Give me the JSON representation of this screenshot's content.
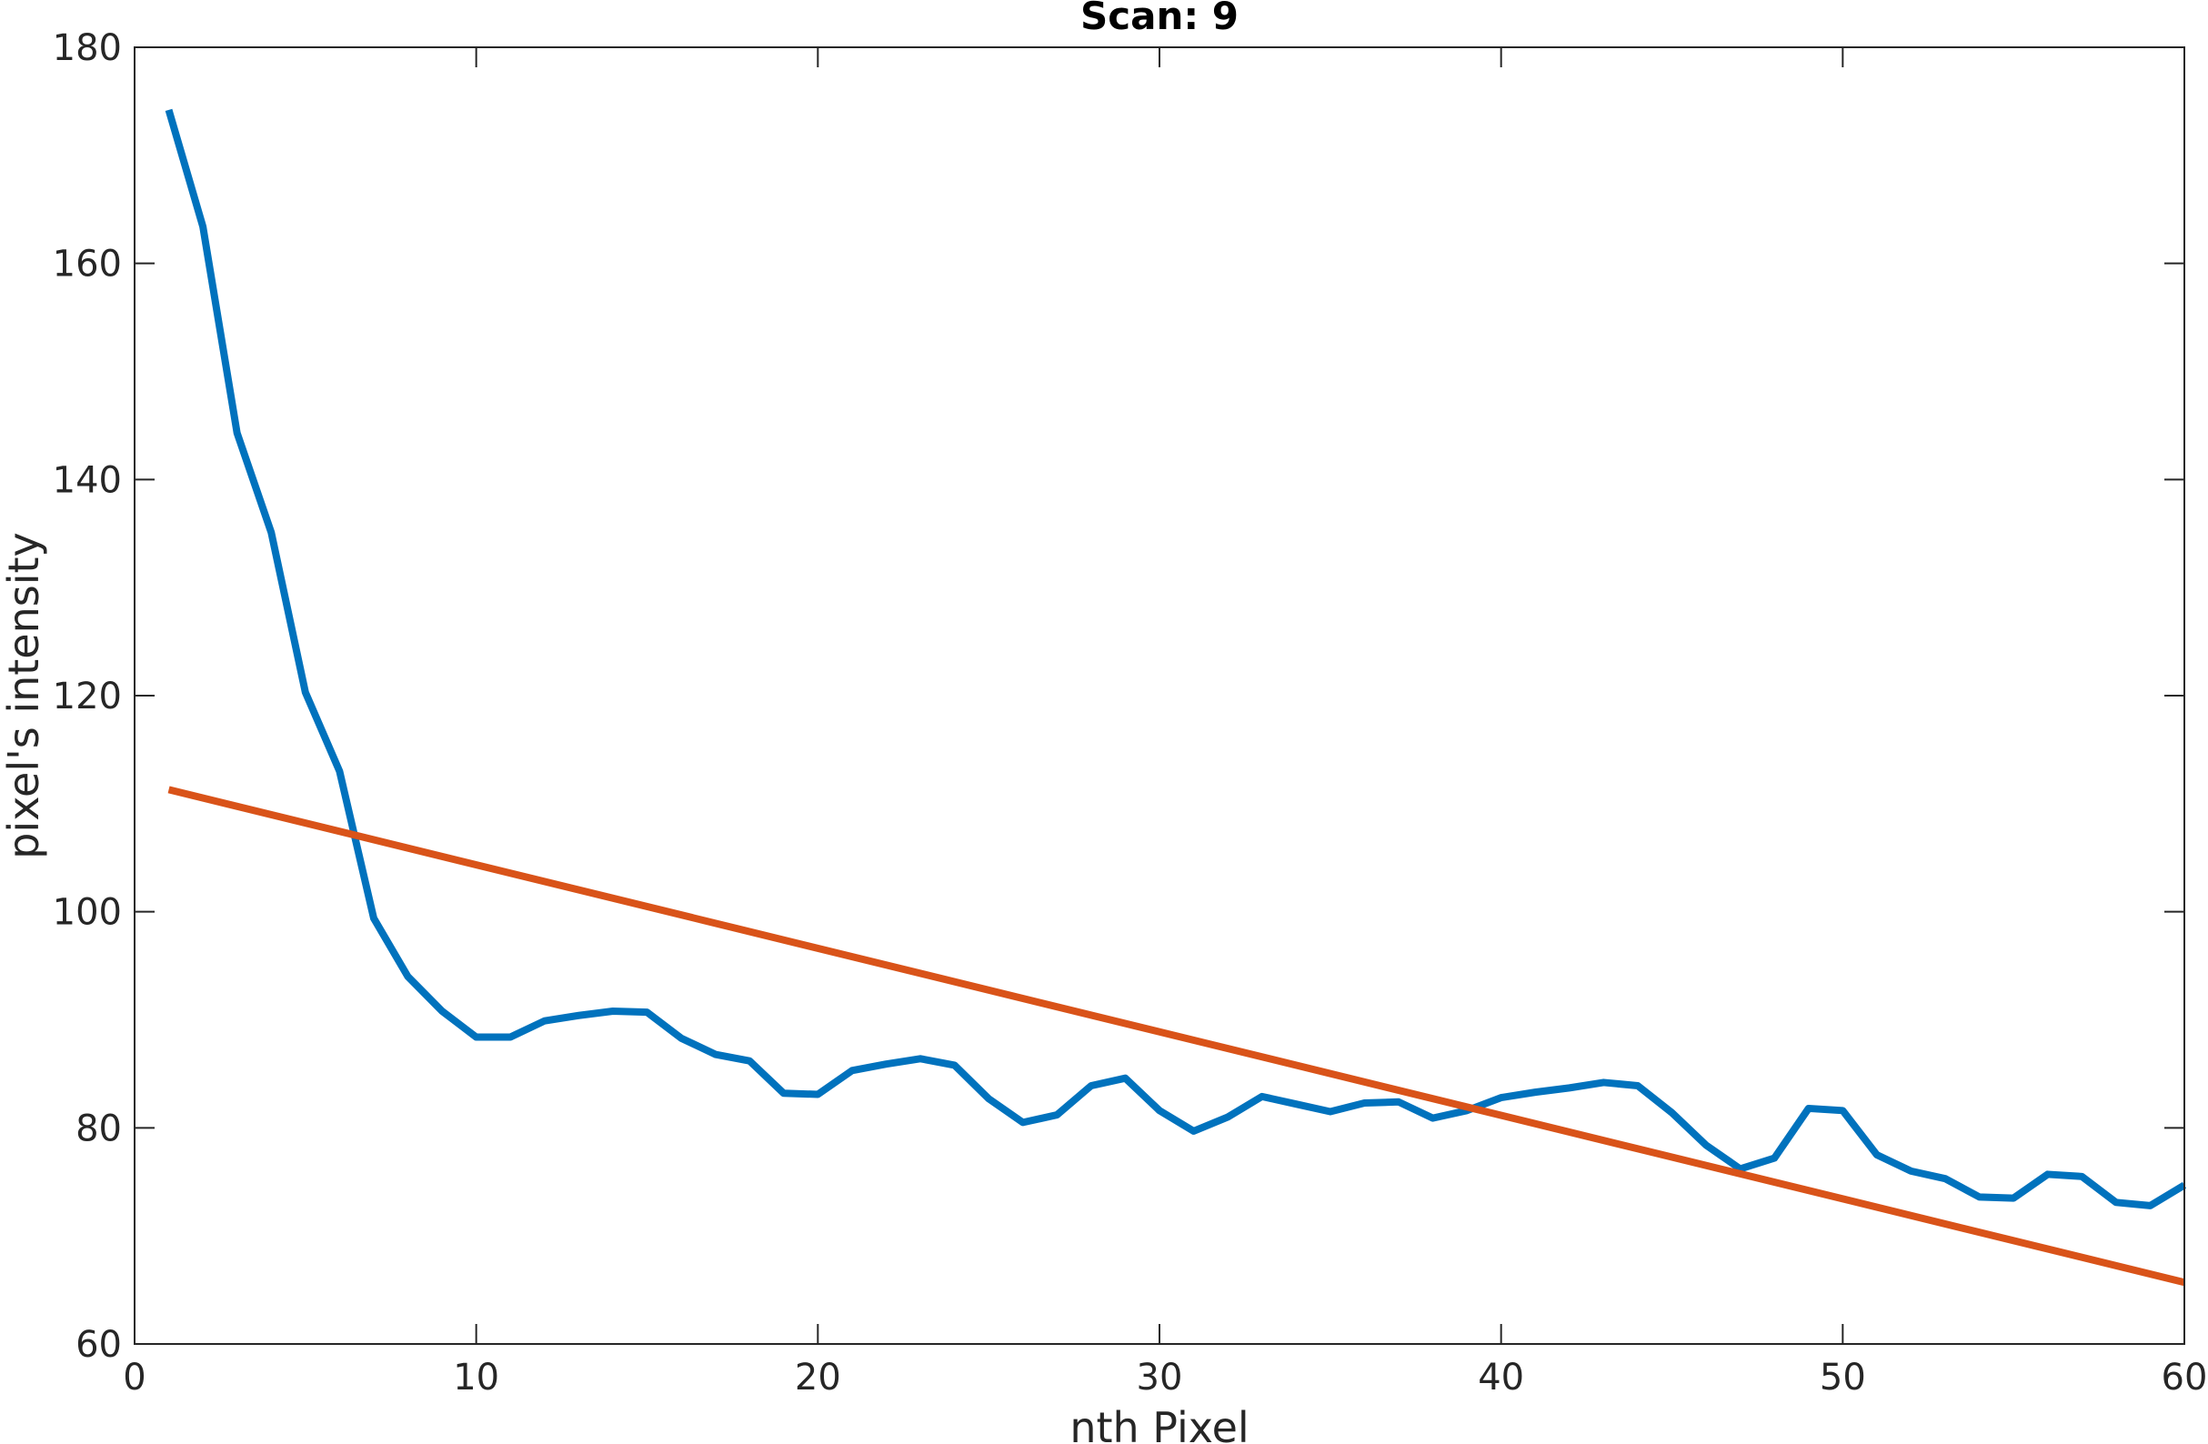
{
  "chart_data": {
    "type": "line",
    "title": "Scan: 9",
    "xlabel": "nth Pixel",
    "ylabel": "pixel's intensity",
    "xlim": [
      0,
      60
    ],
    "ylim": [
      60,
      180
    ],
    "xticks": [
      0,
      10,
      20,
      30,
      40,
      50,
      60
    ],
    "yticks": [
      60,
      80,
      100,
      120,
      140,
      160,
      180
    ],
    "grid": false,
    "legend": "none",
    "series": [
      {
        "color": "#0072BD",
        "x": [
          1,
          2,
          3,
          4,
          5,
          6,
          7,
          8,
          9,
          10,
          11,
          12,
          13,
          14,
          15,
          16,
          17,
          18,
          19,
          20,
          21,
          22,
          23,
          24,
          25,
          26,
          27,
          28,
          29,
          30,
          31,
          32,
          33,
          34,
          35,
          36,
          37,
          38,
          39,
          40,
          41,
          42,
          43,
          44,
          45,
          46,
          47,
          48,
          49,
          50,
          51,
          52,
          53,
          54,
          55,
          56,
          57,
          58,
          59,
          60
        ],
        "y": [
          174.2,
          163.4,
          144.3,
          135.1,
          120.3,
          113.0,
          99.4,
          94.0,
          90.8,
          88.4,
          88.4,
          89.9,
          90.4,
          90.8,
          90.7,
          88.3,
          86.8,
          86.2,
          83.2,
          83.1,
          85.3,
          85.9,
          86.4,
          85.8,
          82.7,
          80.5,
          81.2,
          83.9,
          84.6,
          81.6,
          79.7,
          81.0,
          82.9,
          82.2,
          81.5,
          82.3,
          82.4,
          80.9,
          81.6,
          82.8,
          83.3,
          83.7,
          84.2,
          83.9,
          81.4,
          78.4,
          76.2,
          77.2,
          81.8,
          81.6,
          77.5,
          76.0,
          75.3,
          73.6,
          73.5,
          75.7,
          75.5,
          73.1,
          72.8,
          74.7
        ]
      },
      {
        "color": "#D95319",
        "x": [
          1,
          60
        ],
        "y": [
          111.3,
          65.7
        ]
      }
    ]
  }
}
